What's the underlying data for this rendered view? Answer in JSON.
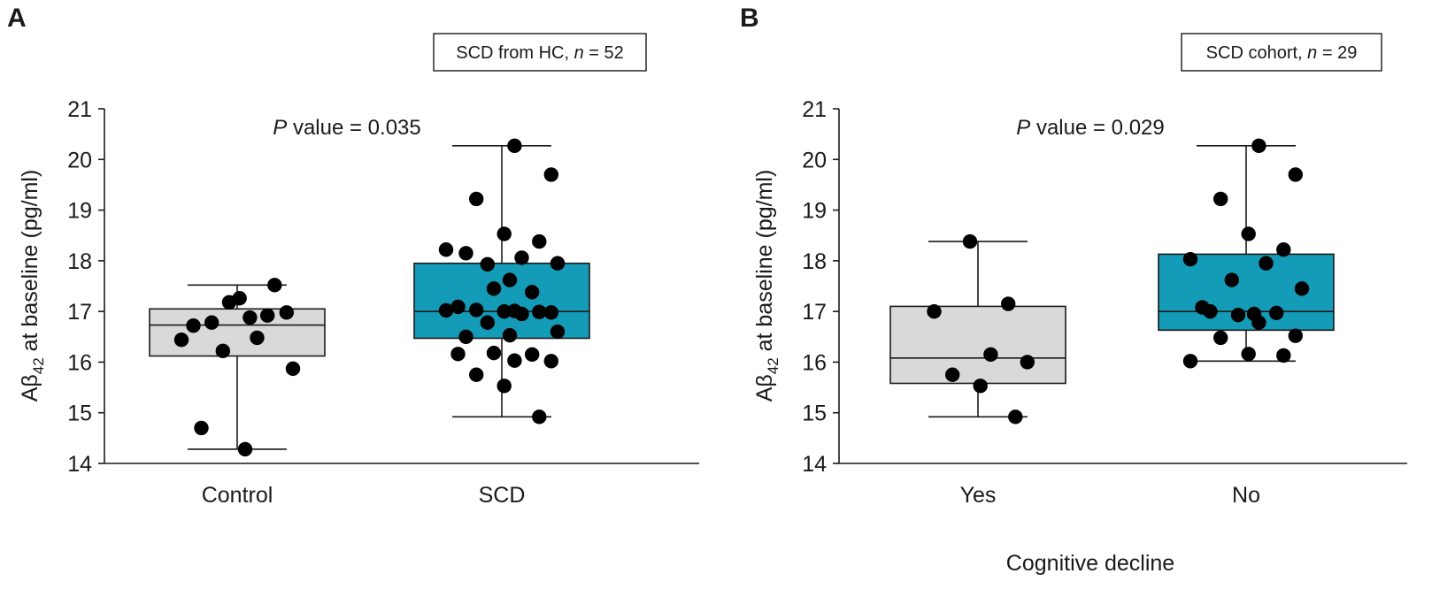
{
  "chart_data": [
    {
      "type": "box",
      "panel": "A",
      "legend": {
        "prefix": "SCD from HC, ",
        "n_label": "n",
        "suffix": " = 52"
      },
      "pvalue": {
        "label": "P",
        "text": " value = 0.035"
      },
      "ylabel": {
        "base": "Aβ",
        "sub": "42",
        "rest": " at baseline  (pg/ml)"
      },
      "xlabel": "",
      "ylim": [
        14,
        21
      ],
      "yticks": [
        "14",
        "15",
        "16",
        "17",
        "18",
        "19",
        "20",
        "21"
      ],
      "groups": [
        {
          "name": "Control",
          "color": "#d9d9d9",
          "whisker_low": 14.28,
          "q1": 16.12,
          "median": 16.73,
          "q3": 17.05,
          "whisker_high": 17.52,
          "points": [
            17.18,
            16.92,
            16.72,
            16.88,
            16.98,
            16.78,
            17.26,
            17.52,
            16.44,
            16.48,
            16.22,
            15.87,
            14.7,
            14.28
          ]
        },
        {
          "name": "SCD",
          "color": "#149bb7",
          "whisker_low": 14.92,
          "q1": 16.47,
          "median": 17.0,
          "q3": 17.95,
          "whisker_high": 20.27,
          "points": [
            20.27,
            19.7,
            19.22,
            18.53,
            18.38,
            18.22,
            18.06,
            17.93,
            17.95,
            18.15,
            17.62,
            17.45,
            17.38,
            17.09,
            17.01,
            16.98,
            17.03,
            17.0,
            16.99,
            17.02,
            16.95,
            16.78,
            16.6,
            16.5,
            16.53,
            16.18,
            16.15,
            16.16,
            16.03,
            16.02,
            15.75,
            15.53,
            14.92
          ]
        }
      ]
    },
    {
      "type": "box",
      "panel": "B",
      "legend": {
        "prefix": "SCD cohort, ",
        "n_label": "n",
        "suffix": " = 29"
      },
      "pvalue": {
        "label": "P",
        "text": " value = 0.029"
      },
      "ylabel": {
        "base": "Aβ",
        "sub": "42",
        "rest": " at baseline  (pg/ml)"
      },
      "xlabel": "Cognitive decline",
      "ylim": [
        14,
        21
      ],
      "yticks": [
        "14",
        "15",
        "16",
        "17",
        "18",
        "19",
        "20",
        "21"
      ],
      "groups": [
        {
          "name": "Yes",
          "color": "#d9d9d9",
          "whisker_low": 14.92,
          "q1": 15.58,
          "median": 16.08,
          "q3": 17.1,
          "whisker_high": 18.38,
          "points": [
            18.38,
            17.15,
            17.0,
            16.15,
            16.0,
            15.75,
            15.53,
            14.92
          ]
        },
        {
          "name": "No",
          "color": "#149bb7",
          "whisker_low": 16.02,
          "q1": 16.63,
          "median": 17.0,
          "q3": 18.13,
          "whisker_high": 20.27,
          "points": [
            20.27,
            19.7,
            19.22,
            18.53,
            18.22,
            18.03,
            17.95,
            17.62,
            17.45,
            17.0,
            16.95,
            16.93,
            16.97,
            17.08,
            16.78,
            16.52,
            16.48,
            16.16,
            16.13,
            16.02
          ]
        }
      ]
    }
  ]
}
